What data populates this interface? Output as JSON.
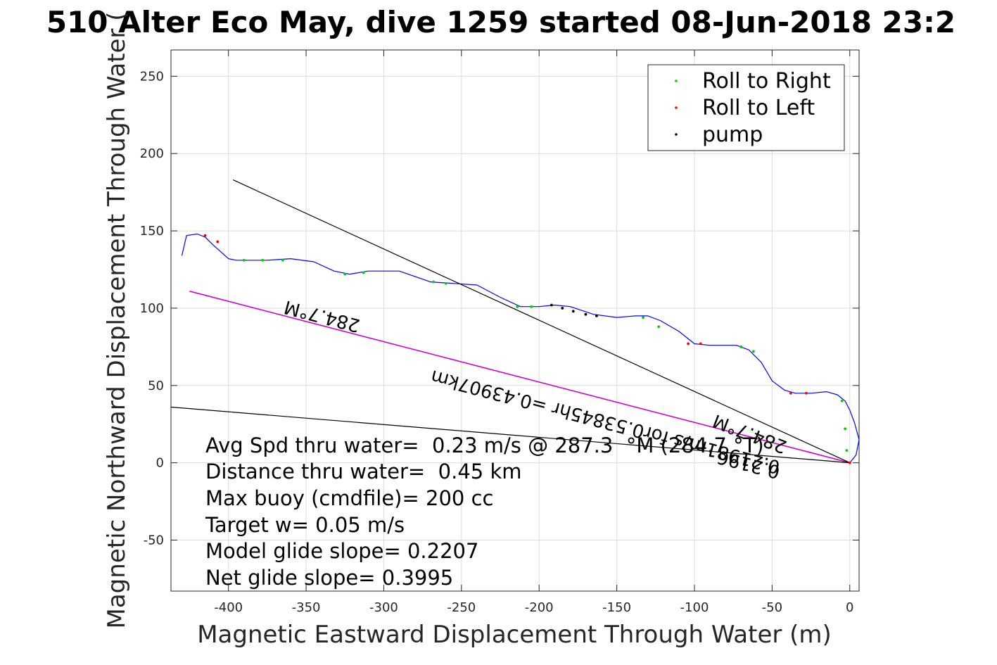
{
  "chart_data": {
    "type": "line",
    "title": "510 Alter Eco May, dive 1259 started 08-Jun-2018 23:2",
    "xlabel": "Magnetic Eastward Displacement Through Water (m)",
    "ylabel": "Magnetic Northward Displacement Through Water (",
    "xlim": [
      -437,
      6
    ],
    "ylim": [
      -83,
      267
    ],
    "xticks": [
      -400,
      -350,
      -300,
      -250,
      -200,
      -150,
      -100,
      -50,
      0
    ],
    "yticks": [
      -50,
      0,
      50,
      100,
      150,
      200,
      250
    ],
    "grid": true,
    "legend_position": "top-right",
    "colors": {
      "track": "#0000ff",
      "roll_right": "#00cc00",
      "roll_left": "#ff0000",
      "pump": "#000000",
      "average_course": "#d000d0",
      "reference_lines": "#000000"
    },
    "legend": [
      {
        "label": "Roll to Right",
        "color": "#00cc00"
      },
      {
        "label": "Roll to Left",
        "color": "#ff0000"
      },
      {
        "label": "pump",
        "color": "#000000"
      }
    ],
    "series": [
      {
        "role": "glider track",
        "color": "#0000ff",
        "x": [
          0,
          4,
          6,
          3,
          0,
          -3,
          -8,
          -15,
          -25,
          -35,
          -42,
          -50,
          -57,
          -65,
          -73,
          -80,
          -90,
          -100,
          -110,
          -122,
          -130,
          -138,
          -150,
          -165,
          -180,
          -190,
          -200,
          -212,
          -225,
          -240,
          -255,
          -270,
          -290,
          -310,
          -322,
          -332,
          -345,
          -360,
          -375,
          -385,
          -395,
          -400,
          -410,
          -415,
          -420,
          -427,
          -430
        ],
        "y": [
          0,
          5,
          15,
          26,
          34,
          40,
          44,
          46,
          45,
          45,
          47,
          53,
          65,
          73,
          76,
          76,
          76,
          77,
          85,
          92,
          95,
          95,
          94,
          96,
          101,
          102,
          101,
          101,
          107,
          115,
          116,
          117,
          124,
          124,
          122,
          124,
          130,
          132,
          131,
          131,
          131,
          132,
          141,
          146,
          148,
          147,
          134
        ]
      },
      {
        "role": "average course",
        "color": "#d000d0",
        "x": [
          0,
          -425
        ],
        "y": [
          0,
          111
        ]
      },
      {
        "role": "reference line",
        "color": "#000000",
        "x": [
          0,
          -397
        ],
        "y": [
          0,
          183
        ]
      },
      {
        "role": "reference line",
        "color": "#000000",
        "x": [
          0,
          -437
        ],
        "y": [
          0,
          36
        ]
      }
    ],
    "markers": {
      "roll_right": [
        [
          -2,
          8
        ],
        [
          -3,
          22
        ],
        [
          -5,
          40
        ],
        [
          -62,
          72
        ],
        [
          -70,
          75
        ],
        [
          -123,
          88
        ],
        [
          -133,
          94
        ],
        [
          -205,
          101
        ],
        [
          -214,
          101
        ],
        [
          -260,
          116
        ],
        [
          -268,
          117
        ],
        [
          -313,
          123
        ],
        [
          -325,
          122
        ],
        [
          -365,
          131
        ],
        [
          -378,
          131
        ],
        [
          -390,
          131
        ]
      ],
      "roll_left": [
        [
          0,
          0
        ],
        [
          -28,
          45
        ],
        [
          -38,
          45
        ],
        [
          -96,
          77
        ],
        [
          -104,
          77
        ],
        [
          -407,
          143
        ],
        [
          -415,
          147
        ]
      ],
      "pump": [
        [
          -163,
          95
        ],
        [
          -170,
          96
        ],
        [
          -178,
          98
        ],
        [
          -185,
          100
        ],
        [
          -192,
          102
        ]
      ]
    },
    "annotations": [
      "284.7°M",
      "0.21981m/s for0.53845hr =0.43907km",
      "284.7°M",
      "0.2196"
    ],
    "stats": [
      "Avg Spd thru water=  0.23 m/s @ 287.3  °M (284.7 °T)",
      "Distance thru water=  0.45 km",
      "Max buoy (cmdfile)= 200 cc",
      "Target w= 0.05 m/s",
      "Model glide slope= 0.2207",
      "Net glide slope= 0.3995"
    ]
  }
}
